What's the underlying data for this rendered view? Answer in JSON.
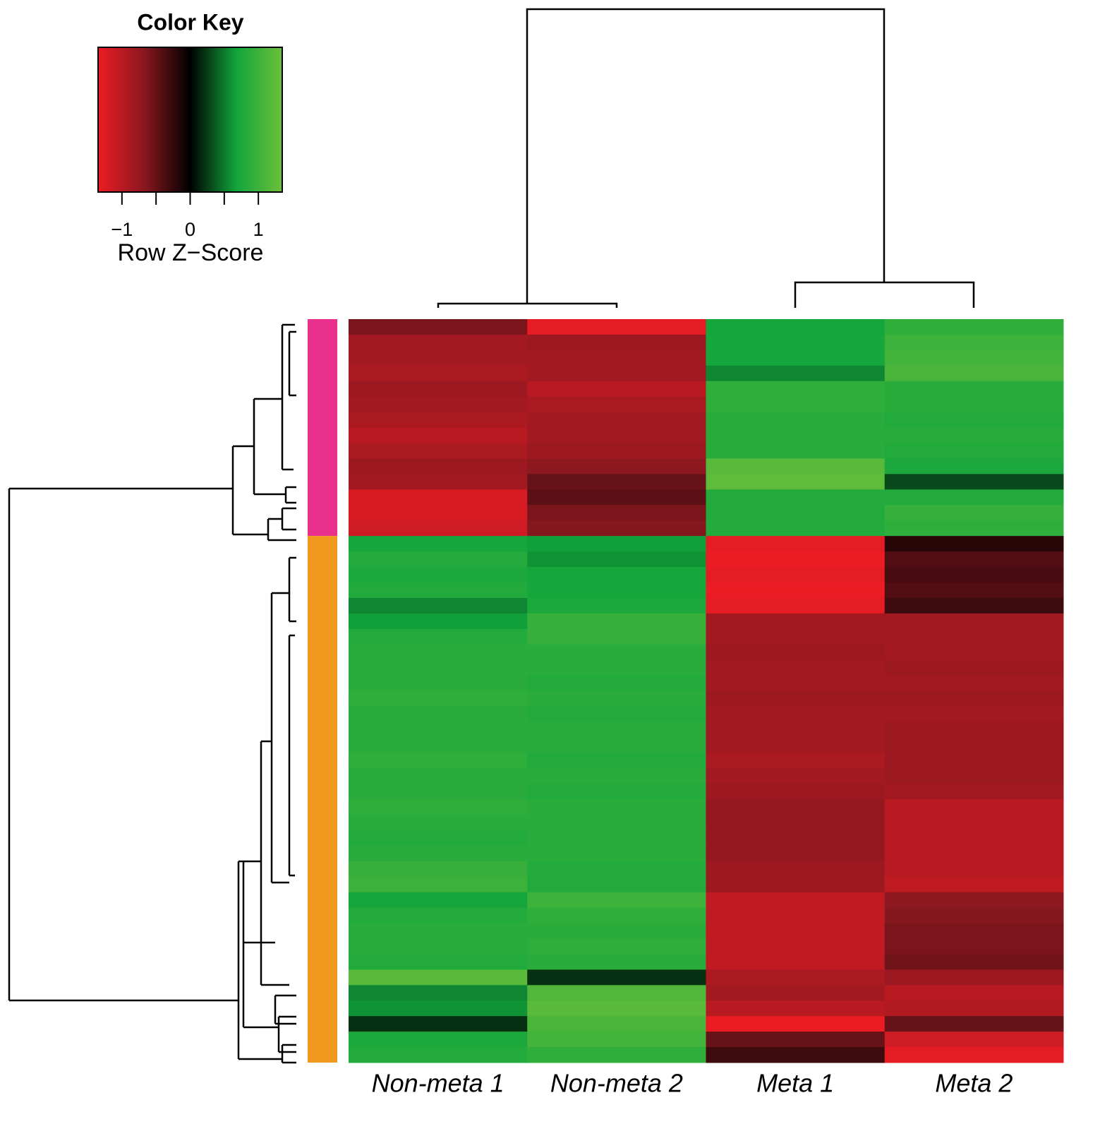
{
  "chart_data": {
    "type": "heatmap",
    "categories": [
      "Non-meta 1",
      "Non-meta 2",
      "Meta 1",
      "Meta 2"
    ],
    "color_key": {
      "title": "Color Key",
      "xlabel": "Row Z−Score",
      "xlim": [
        -1.35,
        1.35
      ],
      "xticks": [
        {
          "value": -1,
          "label": "−1"
        },
        0,
        1
      ],
      "minor_xticks": [
        -0.5,
        0.5
      ],
      "colors": [
        "#ec1c24",
        "#8a1820",
        "#000000",
        "#12a53c",
        "#6cbf3a"
      ]
    },
    "row_groups": [
      {
        "color": "#e8308c",
        "rows": 14
      },
      {
        "color": "#f0971e",
        "rows": 34
      }
    ],
    "values": [
      [
        -0.6,
        -1.3,
        0.7,
        0.9
      ],
      [
        -0.85,
        -0.8,
        0.7,
        1.0
      ],
      [
        -0.85,
        -0.85,
        0.7,
        1.05
      ],
      [
        -0.9,
        -0.85,
        0.55,
        1.1
      ],
      [
        -0.8,
        -1.0,
        0.9,
        0.85
      ],
      [
        -0.85,
        -0.9,
        0.9,
        0.85
      ],
      [
        -0.9,
        -0.85,
        0.85,
        0.8
      ],
      [
        -1.0,
        -0.85,
        0.85,
        0.85
      ],
      [
        -0.9,
        -0.8,
        0.85,
        0.8
      ],
      [
        -0.8,
        -0.7,
        1.2,
        0.75
      ],
      [
        -0.85,
        -0.5,
        1.25,
        0.3
      ],
      [
        -1.2,
        -0.45,
        0.8,
        0.8
      ],
      [
        -1.2,
        -0.6,
        0.8,
        0.95
      ],
      [
        -1.15,
        -0.65,
        0.8,
        0.9
      ],
      [
        0.7,
        0.65,
        -1.3,
        -0.2
      ],
      [
        0.8,
        0.6,
        -1.35,
        -0.4
      ],
      [
        0.75,
        0.7,
        -1.3,
        -0.35
      ],
      [
        0.8,
        0.7,
        -1.35,
        -0.4
      ],
      [
        0.55,
        0.75,
        -1.3,
        -0.3
      ],
      [
        0.65,
        0.95,
        -0.85,
        -0.85
      ],
      [
        0.8,
        0.95,
        -0.85,
        -0.85
      ],
      [
        0.85,
        0.85,
        -0.8,
        -0.85
      ],
      [
        0.85,
        0.85,
        -0.85,
        -0.8
      ],
      [
        0.85,
        0.8,
        -0.85,
        -0.85
      ],
      [
        0.9,
        0.85,
        -0.8,
        -0.8
      ],
      [
        0.85,
        0.8,
        -0.85,
        -0.85
      ],
      [
        0.85,
        0.85,
        -0.85,
        -0.8
      ],
      [
        0.85,
        0.85,
        -0.85,
        -0.8
      ],
      [
        0.9,
        0.8,
        -0.9,
        -0.8
      ],
      [
        0.85,
        0.85,
        -0.85,
        -0.8
      ],
      [
        0.85,
        0.8,
        -0.8,
        -0.85
      ],
      [
        0.9,
        0.85,
        -0.75,
        -1.0
      ],
      [
        0.85,
        0.85,
        -0.75,
        -1.0
      ],
      [
        0.8,
        0.85,
        -0.75,
        -1.0
      ],
      [
        0.85,
        0.85,
        -0.75,
        -1.0
      ],
      [
        0.95,
        0.8,
        -0.8,
        -1.0
      ],
      [
        1.0,
        0.8,
        -0.8,
        -1.05
      ],
      [
        0.7,
        1.0,
        -1.05,
        -0.7
      ],
      [
        0.8,
        0.9,
        -1.05,
        -0.65
      ],
      [
        0.85,
        0.85,
        -1.05,
        -0.6
      ],
      [
        0.85,
        0.9,
        -1.05,
        -0.6
      ],
      [
        0.8,
        0.85,
        -1.05,
        -0.55
      ],
      [
        1.2,
        0.2,
        -0.9,
        -0.8
      ],
      [
        0.55,
        1.15,
        -0.85,
        -1.0
      ],
      [
        0.6,
        1.2,
        -1.0,
        -0.95
      ],
      [
        0.2,
        1.1,
        -1.35,
        -0.5
      ],
      [
        0.75,
        1.05,
        -0.5,
        -1.15
      ],
      [
        0.8,
        0.9,
        -0.3,
        -1.3
      ]
    ]
  }
}
